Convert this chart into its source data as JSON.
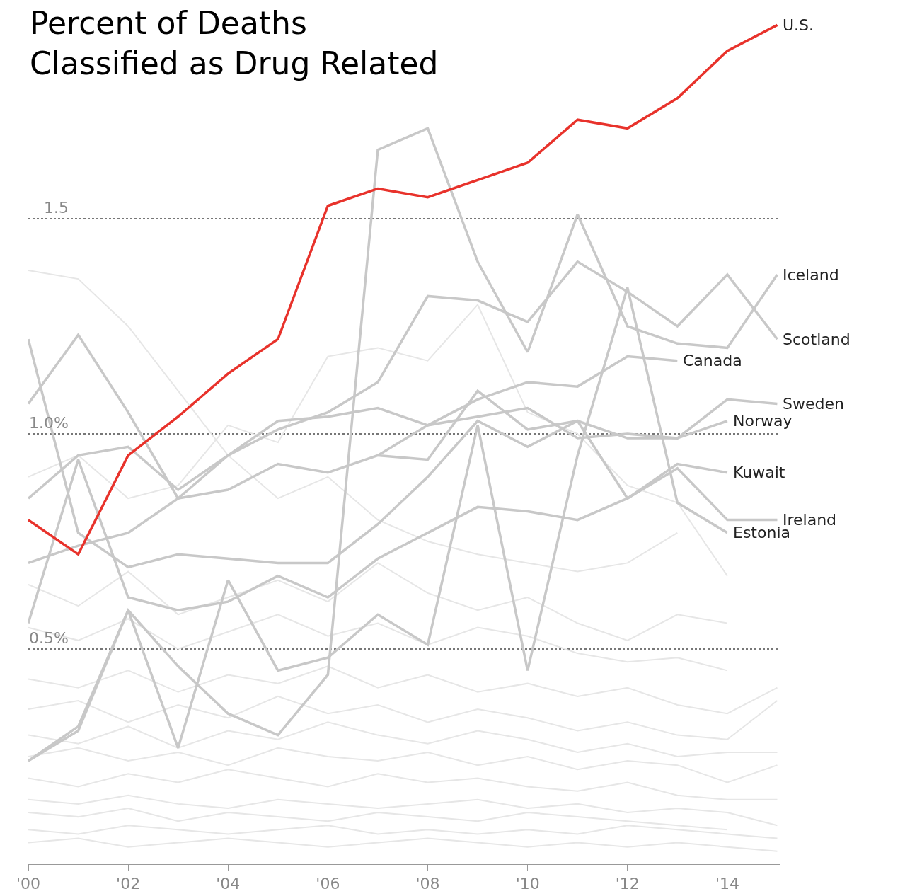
{
  "chart_data": {
    "type": "line",
    "title": "Percent of Deaths\nClassified as Drug Related",
    "x": [
      2000,
      2001,
      2002,
      2003,
      2004,
      2005,
      2006,
      2007,
      2008,
      2009,
      2010,
      2011,
      2012,
      2013,
      2014,
      2015
    ],
    "xlim": [
      2000,
      2015.05
    ],
    "xticks": [
      {
        "value": 2000,
        "label": "'00"
      },
      {
        "value": 2002,
        "label": "'02"
      },
      {
        "value": 2004,
        "label": "'04"
      },
      {
        "value": 2006,
        "label": "'06"
      },
      {
        "value": 2008,
        "label": "'08"
      },
      {
        "value": 2010,
        "label": "'10"
      },
      {
        "value": 2012,
        "label": "'12"
      },
      {
        "value": 2014,
        "label": "'14"
      }
    ],
    "ylim": [
      0,
      2.0
    ],
    "yticks": [
      {
        "value": 0.5,
        "label": "0.5%"
      },
      {
        "value": 1.0,
        "label": "1.0%"
      },
      {
        "value": 1.5,
        "label": "1.5"
      }
    ],
    "grid": "y",
    "legend": false,
    "marker": "none",
    "line_style": "solid",
    "series": [
      {
        "color": "#e6e6e6",
        "values": [
          0.12,
          0.11,
          0.13,
          0.1,
          0.12,
          0.11,
          0.1,
          0.12,
          0.11,
          0.1,
          0.12,
          0.11,
          0.1,
          0.09,
          0.08,
          null
        ]
      },
      {
        "color": "#e6e6e6",
        "values": [
          0.08,
          0.07,
          0.09,
          0.08,
          0.07,
          0.08,
          0.09,
          0.07,
          0.08,
          0.07,
          0.08,
          0.07,
          0.09,
          0.08,
          0.07,
          0.06
        ]
      },
      {
        "color": "#e6e6e6",
        "values": [
          0.05,
          0.06,
          0.04,
          0.05,
          0.06,
          0.05,
          0.04,
          0.05,
          0.06,
          0.05,
          0.04,
          0.05,
          0.04,
          0.05,
          0.04,
          0.03
        ]
      },
      {
        "color": "#e6e6e6",
        "values": [
          0.15,
          0.14,
          0.16,
          0.14,
          0.13,
          0.15,
          0.14,
          0.13,
          0.14,
          0.15,
          0.13,
          0.14,
          0.12,
          0.13,
          0.12,
          0.09
        ]
      },
      {
        "color": "#e6e6e6",
        "values": [
          0.2,
          0.18,
          0.21,
          0.19,
          0.22,
          0.2,
          0.18,
          0.21,
          0.19,
          0.2,
          0.18,
          0.17,
          0.19,
          0.16,
          0.15,
          0.15
        ]
      },
      {
        "color": "#e6e6e6",
        "values": [
          0.25,
          0.27,
          0.24,
          0.26,
          0.23,
          0.27,
          0.25,
          0.24,
          0.26,
          0.23,
          0.25,
          0.22,
          0.24,
          0.23,
          0.19,
          0.23
        ]
      },
      {
        "color": "#e6e6e6",
        "values": [
          0.3,
          0.28,
          0.32,
          0.27,
          0.31,
          0.29,
          0.33,
          0.3,
          0.28,
          0.31,
          0.29,
          0.26,
          0.28,
          0.25,
          0.26,
          0.26
        ]
      },
      {
        "color": "#e6e6e6",
        "values": [
          0.36,
          0.38,
          0.33,
          0.37,
          0.34,
          0.39,
          0.35,
          0.37,
          0.33,
          0.36,
          0.34,
          0.31,
          0.33,
          0.3,
          0.29,
          0.38
        ]
      },
      {
        "color": "#e6e6e6",
        "values": [
          0.43,
          0.41,
          0.45,
          0.4,
          0.44,
          0.42,
          0.46,
          0.41,
          0.44,
          0.4,
          0.42,
          0.39,
          0.41,
          0.37,
          0.35,
          0.41
        ]
      },
      {
        "color": "#e6e6e6",
        "values": [
          0.55,
          0.52,
          0.57,
          0.5,
          0.54,
          0.58,
          0.53,
          0.56,
          0.51,
          0.55,
          0.53,
          0.49,
          0.47,
          0.48,
          0.45,
          null
        ]
      },
      {
        "color": "#e6e6e6",
        "values": [
          0.65,
          0.6,
          0.68,
          0.58,
          0.62,
          0.66,
          0.61,
          0.7,
          0.63,
          0.59,
          0.62,
          0.56,
          0.52,
          0.58,
          0.56,
          null
        ]
      },
      {
        "color": "#e6e6e6",
        "values": [
          1.38,
          1.36,
          1.25,
          1.1,
          0.95,
          0.85,
          0.9,
          0.8,
          0.75,
          0.72,
          0.7,
          0.68,
          0.7,
          0.77,
          null,
          null
        ]
      },
      {
        "color": "#e6e6e6",
        "values": [
          0.9,
          0.95,
          0.85,
          0.88,
          1.02,
          0.98,
          1.18,
          1.2,
          1.17,
          1.3,
          1.05,
          1.0,
          0.88,
          0.84,
          0.67,
          null
        ]
      },
      {
        "name": "Iceland",
        "color": "#c8c8c8",
        "values": [
          0.24,
          0.32,
          0.59,
          0.46,
          0.35,
          0.3,
          0.44,
          1.66,
          1.71,
          1.4,
          1.19,
          1.51,
          1.25,
          1.21,
          1.2,
          1.37
        ]
      },
      {
        "name": "Scotland",
        "color": "#c8c8c8",
        "values": [
          1.07,
          1.23,
          1.05,
          0.85,
          0.95,
          1.01,
          1.05,
          1.12,
          1.32,
          1.31,
          1.26,
          1.4,
          1.33,
          1.25,
          1.37,
          1.22
        ]
      },
      {
        "name": "Canada",
        "color": "#c8c8c8",
        "values": [
          0.7,
          0.74,
          0.77,
          0.85,
          0.87,
          0.93,
          0.91,
          0.95,
          1.02,
          1.08,
          1.12,
          1.11,
          1.18,
          1.17,
          null,
          null
        ]
      },
      {
        "name": "Sweden",
        "color": "#c8c8c8",
        "values": [
          0.85,
          0.95,
          0.97,
          0.87,
          0.95,
          1.03,
          1.04,
          1.06,
          1.02,
          1.04,
          1.06,
          0.99,
          1.0,
          0.99,
          1.08,
          1.07
        ]
      },
      {
        "name": "Norway",
        "color": "#c8c8c8",
        "values": [
          1.22,
          0.77,
          0.69,
          0.72,
          0.71,
          0.7,
          0.7,
          0.79,
          0.9,
          1.03,
          0.97,
          1.03,
          0.99,
          0.99,
          1.03,
          null
        ]
      },
      {
        "name": "Kuwait",
        "color": "#c8c8c8",
        "values": [
          null,
          null,
          null,
          null,
          null,
          null,
          null,
          0.95,
          0.94,
          1.1,
          1.01,
          1.03,
          0.85,
          0.93,
          0.91,
          null
        ]
      },
      {
        "name": "Ireland",
        "color": "#c8c8c8",
        "values": [
          0.56,
          0.94,
          0.62,
          0.59,
          0.61,
          0.67,
          0.62,
          0.71,
          0.77,
          0.83,
          0.82,
          0.8,
          0.85,
          0.92,
          0.8,
          0.8
        ]
      },
      {
        "name": "Estonia",
        "color": "#c8c8c8",
        "values": [
          0.24,
          0.31,
          0.59,
          0.27,
          0.66,
          0.45,
          0.48,
          0.58,
          0.51,
          1.02,
          0.45,
          0.95,
          1.34,
          0.84,
          0.77,
          null
        ]
      },
      {
        "name": "U.S.",
        "color": "#e8322b",
        "values": [
          0.8,
          0.72,
          0.95,
          1.04,
          1.14,
          1.22,
          1.53,
          1.57,
          1.55,
          1.59,
          1.63,
          1.73,
          1.71,
          1.78,
          1.89,
          1.95
        ]
      }
    ]
  }
}
